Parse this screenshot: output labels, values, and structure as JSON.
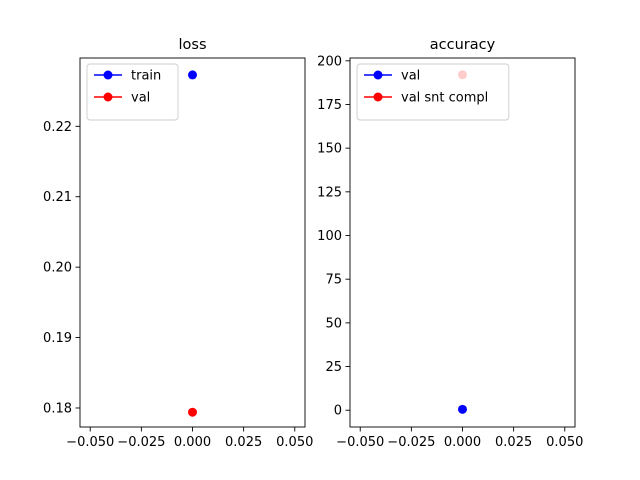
{
  "chart_data": [
    {
      "type": "scatter",
      "title": "loss",
      "xlabel": "",
      "ylabel": "",
      "xlim": [
        -0.055,
        0.055
      ],
      "ylim": [
        0.1773,
        0.2297
      ],
      "xticks": [
        -0.05,
        -0.025,
        0.0,
        0.025,
        0.05
      ],
      "xtick_labels": [
        "−0.050",
        "−0.025",
        "0.000",
        "0.025",
        "0.050"
      ],
      "yticks": [
        0.18,
        0.19,
        0.2,
        0.21,
        0.22
      ],
      "ytick_labels": [
        "0.18",
        "0.19",
        "0.20",
        "0.21",
        "0.22"
      ],
      "legend_position": "upper-left",
      "series": [
        {
          "name": "train",
          "color": "#0000ff",
          "points": [
            {
              "x": 0.0,
              "y": 0.2273
            }
          ]
        },
        {
          "name": "val",
          "color": "#ff0000",
          "points": [
            {
              "x": 0.0,
              "y": 0.1794
            }
          ]
        }
      ]
    },
    {
      "type": "scatter",
      "title": "accuracy",
      "xlabel": "",
      "ylabel": "",
      "xlim": [
        -0.055,
        0.055
      ],
      "ylim": [
        -9.6,
        201.6
      ],
      "xticks": [
        -0.05,
        -0.025,
        0.0,
        0.025,
        0.05
      ],
      "xtick_labels": [
        "−0.050",
        "−0.025",
        "0.000",
        "0.025",
        "0.050"
      ],
      "yticks": [
        0,
        25,
        50,
        75,
        100,
        125,
        150,
        175,
        200
      ],
      "ytick_labels": [
        "0",
        "25",
        "50",
        "75",
        "100",
        "125",
        "150",
        "175",
        "200"
      ],
      "legend_position": "upper-left",
      "series": [
        {
          "name": "val",
          "color": "#0000ff",
          "points": [
            {
              "x": 0.0,
              "y": 0.5
            }
          ]
        },
        {
          "name": "val snt compl",
          "color": "#ff0000",
          "points": [
            {
              "x": 0.0,
              "y": 192.0
            }
          ]
        }
      ]
    }
  ]
}
